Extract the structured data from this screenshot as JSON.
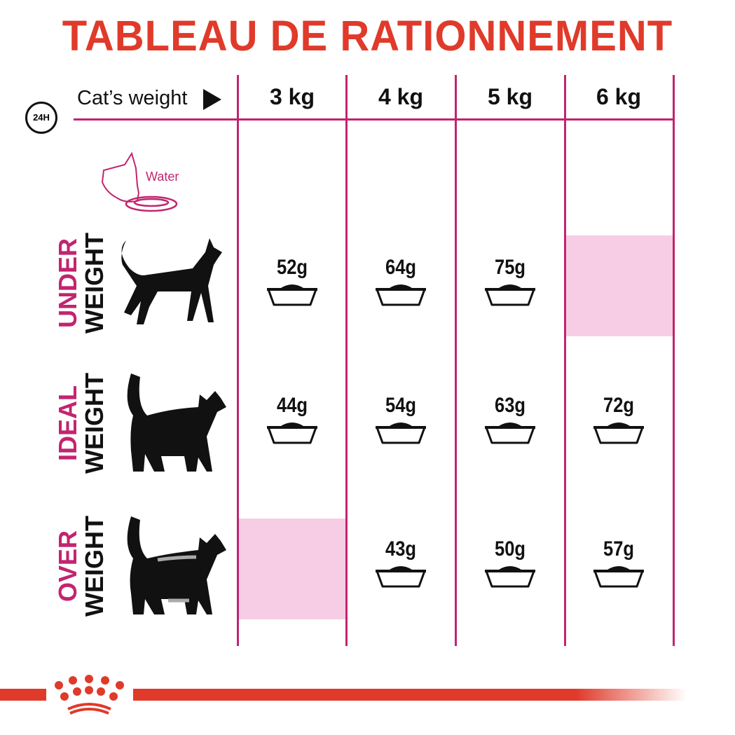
{
  "title": "TABLEAU DE RATIONNEMENT",
  "header": {
    "clock_label": "24H",
    "cats_weight_label": "Cat’s weight",
    "water_label": "Water",
    "columns": [
      "3 kg",
      "4 kg",
      "5 kg",
      "6 kg"
    ]
  },
  "rows": [
    {
      "label_top": "UNDER",
      "label_bottom": "WEIGHT",
      "values": [
        "52g",
        "64g",
        "75g",
        null
      ]
    },
    {
      "label_top": "IDEAL",
      "label_bottom": "WEIGHT",
      "values": [
        "44g",
        "54g",
        "63g",
        "72g"
      ]
    },
    {
      "label_top": "OVER",
      "label_bottom": "WEIGHT",
      "values": [
        null,
        "43g",
        "50g",
        "57g"
      ]
    }
  ],
  "colors": {
    "title": "#e03a2a",
    "accent": "#c2246f",
    "empty_cell": "#f7cde5",
    "brand": "#e03a2a"
  },
  "icons": [
    "clock-24h-icon",
    "arrow-right-icon",
    "cat-drinking-water-icon",
    "cat-underweight-icon",
    "cat-ideal-icon",
    "cat-overweight-icon",
    "food-bowl-icon",
    "royal-canin-crown-logo"
  ]
}
